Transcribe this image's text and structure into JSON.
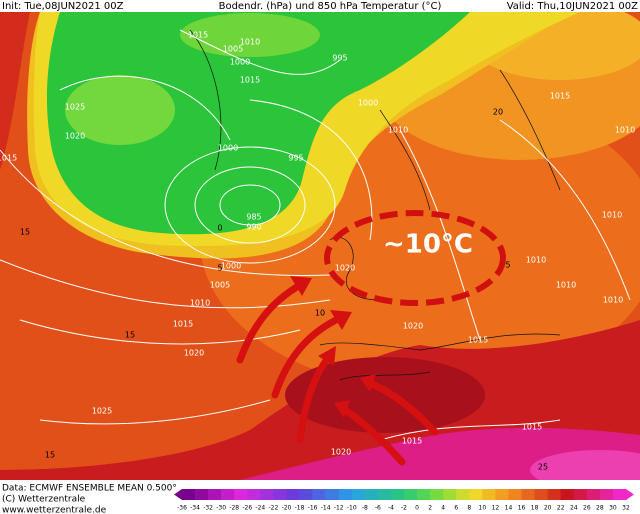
{
  "header": {
    "init": "Init: Tue,08JUN2021 00Z",
    "title": "Bodendr. (hPa) und 850 hPa Temperatur (°C)",
    "valid": "Valid: Thu,10JUN2021 00Z"
  },
  "annotation": "~10°C",
  "isobar_labels": [
    1015,
    1010,
    1005,
    1000,
    1015,
    995,
    1000,
    1025,
    1020,
    1010,
    1000,
    995,
    985,
    990,
    1000,
    1005,
    1010,
    1015,
    1020,
    1025,
    1020,
    1020,
    1015,
    1015,
    1020,
    1015,
    1010,
    1010,
    1010,
    1010,
    1010,
    1015,
    1015
  ],
  "isotherm_labels": [
    15,
    15,
    15,
    10,
    5,
    0,
    5,
    25,
    20
  ],
  "footer": {
    "data": "Data: ECMWF ENSEMBLE MEAN 0.500°",
    "copyright": "(C) Wetterzentrale",
    "url": "www.wetterzentrale.de"
  },
  "colorbar_ticks": [
    -36,
    -34,
    -32,
    -30,
    -28,
    -26,
    -24,
    -22,
    -20,
    -18,
    -16,
    -14,
    -12,
    -10,
    -8,
    -6,
    -4,
    -2,
    0,
    2,
    4,
    6,
    8,
    10,
    12,
    14,
    16,
    18,
    20,
    22,
    24,
    26,
    28,
    30,
    32
  ]
}
